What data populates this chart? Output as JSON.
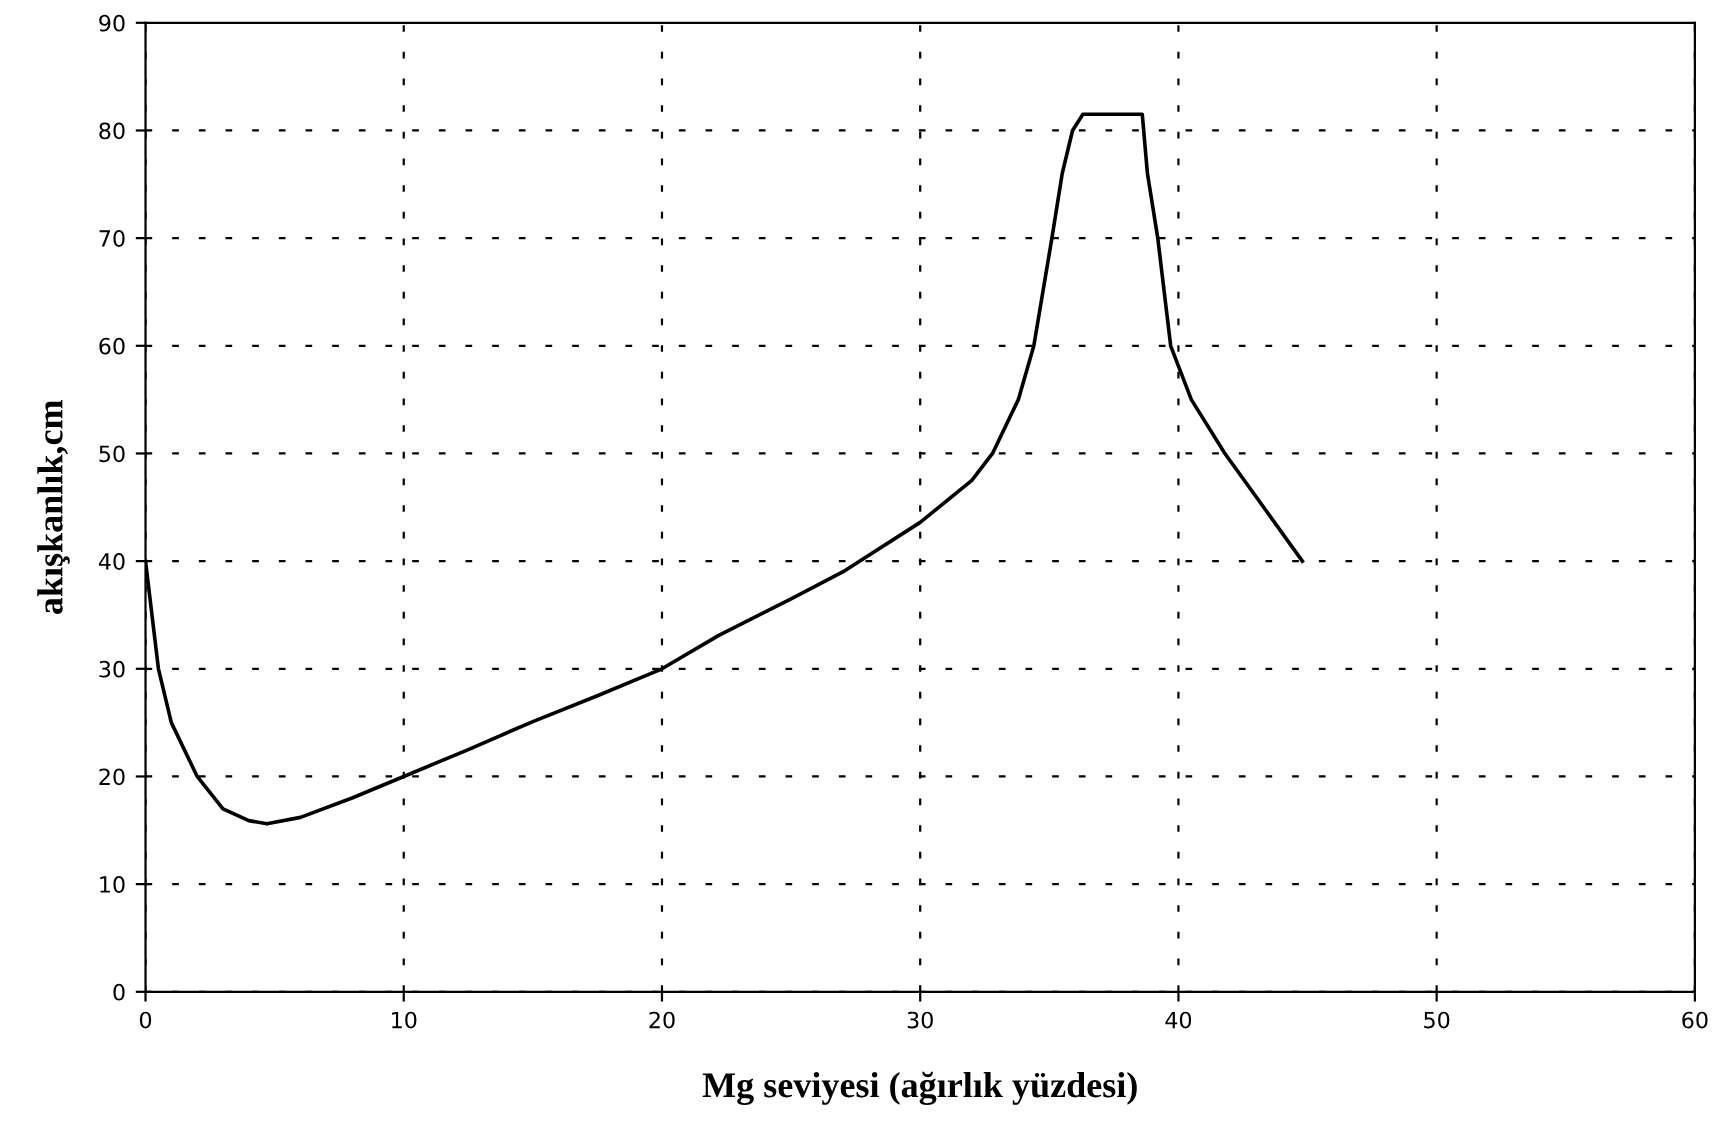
{
  "chart_data": {
    "type": "line",
    "xlabel": "Mg seviyesi (ağırlık yüzdesi)",
    "ylabel": "akışkanlık,cm",
    "series": [
      {
        "color": "#000000",
        "x": [
          0,
          0.5,
          1,
          2,
          3,
          4,
          4.7,
          6,
          8,
          10,
          12.5,
          15,
          17.5,
          20,
          22.2,
          25,
          27,
          30,
          32,
          32.8,
          33.8,
          34.4,
          35.1,
          35.5,
          35.9,
          36.3,
          37.5,
          38.6,
          38.8,
          39.2,
          39.7,
          40.5,
          41.8,
          43.3,
          44.8
        ],
        "values": [
          40,
          30,
          25,
          20,
          17,
          15.9,
          15.6,
          16.2,
          18,
          20,
          22.5,
          25.1,
          27.5,
          30,
          33.1,
          36.5,
          39,
          43.6,
          47.5,
          50,
          55,
          60,
          70,
          76,
          80,
          81.5,
          81.5,
          81.5,
          76,
          70,
          60,
          55,
          50,
          45,
          40
        ]
      }
    ],
    "xlim": [
      0,
      60
    ],
    "ylim": [
      0,
      90
    ],
    "xticks": [
      0,
      10,
      20,
      30,
      40,
      50,
      60
    ],
    "yticks": [
      0,
      10,
      20,
      30,
      40,
      50,
      60,
      70,
      80,
      90
    ],
    "grid": true,
    "marker": "none",
    "line_style": "solid"
  }
}
